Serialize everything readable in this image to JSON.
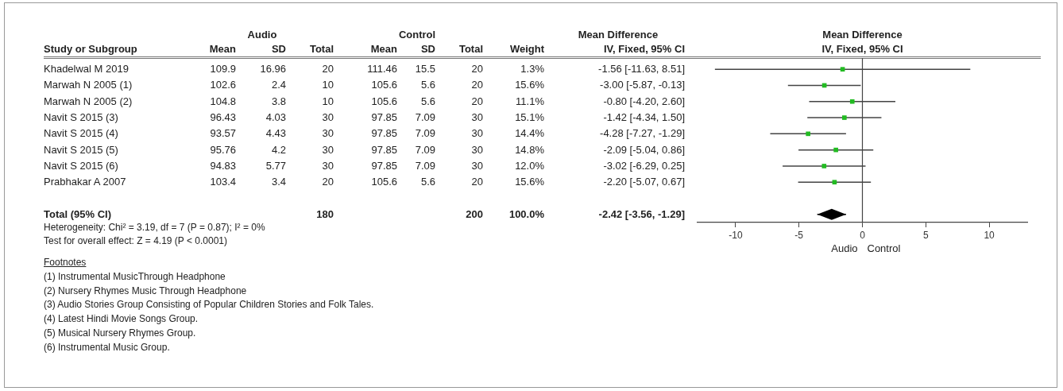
{
  "chart_data": [
    {
      "type": "other",
      "ylabel": "Study or Subgroup",
      "categories": [
        "Mean",
        "SD",
        "Total",
        "Mean",
        "SD",
        "Total",
        "Weight",
        "IV, Fixed, 95% CI"
      ],
      "y_categories": [
        "Khadelwal M 2019",
        "Marwah N 2005 (1)",
        "Marwah N 2005 (2)",
        "Navit S 2015 (3)",
        "Navit S 2015 (4)",
        "Navit S 2015 (5)",
        "Navit S 2015 (6)",
        "Prabhakar A 2007",
        null,
        "Total (95% CI)"
      ],
      "cell_labels": [
        [
          "109.9",
          "16.96",
          "20",
          "111.46",
          "15.5",
          "20",
          "1.3%",
          "-1.56 [-11.63, 8.51]"
        ],
        [
          "102.6",
          "2.4",
          "10",
          "105.6",
          "5.6",
          "20",
          "15.6%",
          "-3.00 [-5.87, -0.13]"
        ],
        [
          "104.8",
          "3.8",
          "10",
          "105.6",
          "5.6",
          "20",
          "11.1%",
          "-0.80 [-4.20, 2.60]"
        ],
        [
          "96.43",
          "4.03",
          "30",
          "97.85",
          "7.09",
          "30",
          "15.1%",
          "-1.42 [-4.34, 1.50]"
        ],
        [
          "93.57",
          "4.43",
          "30",
          "97.85",
          "7.09",
          "30",
          "14.4%",
          "-4.28 [-7.27, -1.29]"
        ],
        [
          "95.76",
          "4.2",
          "30",
          "97.85",
          "7.09",
          "30",
          "14.8%",
          "-2.09 [-5.04, 0.86]"
        ],
        [
          "94.83",
          "5.77",
          "30",
          "97.85",
          "7.09",
          "30",
          "12.0%",
          "-3.02 [-6.29, 0.25]"
        ],
        [
          "103.4",
          "3.4",
          "20",
          "105.6",
          "5.6",
          "20",
          "15.6%",
          "-2.20 [-5.07, 0.67]"
        ],
        [
          null,
          null,
          null,
          null,
          null,
          null,
          null,
          null
        ],
        [
          null,
          null,
          "180",
          null,
          null,
          "200",
          "100.0%",
          "-2.42 [-3.56, -1.29]"
        ]
      ],
      "annotations": [
        "Audio",
        "Control",
        "Mean Difference",
        "Heterogeneity: Chi² = 3.19, df = 7 (P = 0.87); I² = 0%",
        "Test for overall effect: Z = 4.19 (P < 0.0001)",
        "Footnotes",
        "(1) Instrumental MusicThrough Headphone",
        "(2) Nursery Rhymes Music Through Headphone",
        "(3) Audio Stories Group Consisting of Popular Children Stories and Folk Tales.",
        "(4) Latest Hindi Movie Songs Group.",
        "(5) Musical Nursery Rhymes Group.",
        "(6) Instrumental Music Group."
      ]
    },
    {
      "type": "scatter",
      "orientation": "horizontal",
      "title": "Mean Difference",
      "subtitle": "IV, Fixed, 95% CI",
      "categories": [
        null,
        null,
        null,
        null,
        null,
        null,
        null,
        null,
        null,
        null
      ],
      "series": [
        {
          "color": "#22bb22",
          "marker": "square",
          "values": [
            -1.56,
            -3.0,
            -0.8,
            -1.42,
            -4.28,
            -2.09,
            -3.02,
            -2.2,
            null,
            null
          ],
          "errors": [
            [
              -11.63,
              8.51
            ],
            [
              -5.87,
              -0.13
            ],
            [
              -4.2,
              2.6
            ],
            [
              -4.34,
              1.5
            ],
            [
              -7.27,
              -1.29
            ],
            [
              -5.04,
              0.86
            ],
            [
              -6.29,
              0.25
            ],
            [
              -5.07,
              0.67
            ],
            null,
            null
          ]
        },
        {
          "color": "#000000",
          "marker": "diamond",
          "values": [
            null,
            null,
            null,
            null,
            null,
            null,
            null,
            null,
            null,
            -2.42
          ],
          "errors": [
            null,
            null,
            null,
            null,
            null,
            null,
            null,
            null,
            null,
            [
              -3.56,
              -1.29
            ]
          ]
        }
      ],
      "xlim": [
        -13,
        13
      ],
      "xticks": [
        -10,
        -5,
        0,
        5,
        10
      ],
      "tick_labels": "x",
      "ref_lines": [
        {
          "axis": "x",
          "value": 0
        }
      ],
      "annotations": [
        "Audio",
        "Control"
      ]
    }
  ]
}
